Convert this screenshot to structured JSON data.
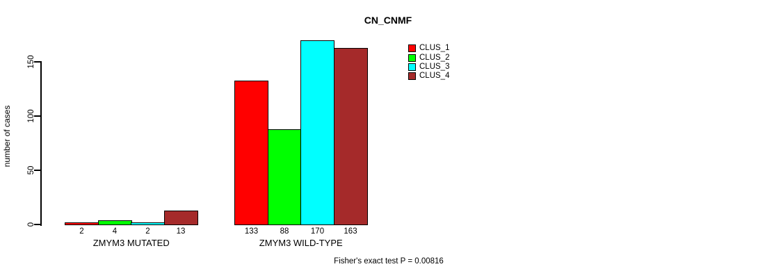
{
  "title": "CN_CNMF",
  "ylabel": "number of cases",
  "footer": "Fisher's exact test P = 0.00816",
  "chart_data": {
    "type": "bar",
    "title": "CN_CNMF",
    "xlabel": "",
    "ylabel": "number of cases",
    "categories": [
      "ZMYM3 MUTATED",
      "ZMYM3 WILD-TYPE"
    ],
    "series": [
      {
        "name": "CLUS_1",
        "color": "#FF0000",
        "values": [
          2,
          133
        ]
      },
      {
        "name": "CLUS_2",
        "color": "#00FF00",
        "values": [
          4,
          88
        ]
      },
      {
        "name": "CLUS_3",
        "color": "#00FFFF",
        "values": [
          2,
          170
        ]
      },
      {
        "name": "CLUS_4",
        "color": "#A52A2A",
        "values": [
          13,
          163
        ]
      }
    ],
    "bar_value_labels": [
      [
        2,
        4,
        2,
        13
      ],
      [
        133,
        88,
        170,
        163
      ]
    ],
    "yticks": [
      0,
      50,
      100,
      150
    ],
    "ylim": [
      0,
      170
    ],
    "grid": false,
    "legend_position": "top-right",
    "annotation": "Fisher's exact test P = 0.00816"
  }
}
